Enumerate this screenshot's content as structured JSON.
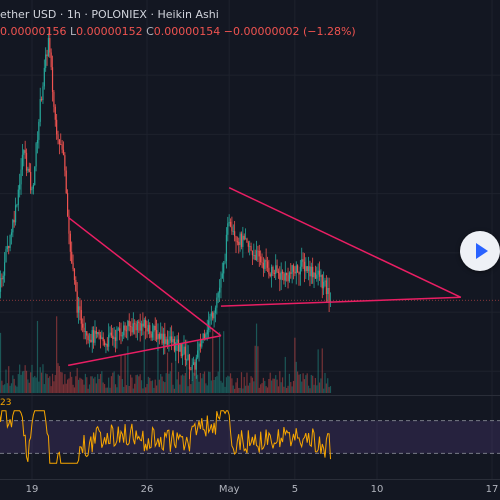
{
  "header": {
    "symbol": "ether USD",
    "interval": "1h",
    "exchange": "POLONIEX",
    "chart_style": "Heikin Ashi",
    "sep": "·",
    "open_value": "0.00000156",
    "low_label": "L",
    "low_value": "0.00000152",
    "close_label": "C",
    "close_value": "0.00000154",
    "change_value": "−0.00000002 (−1.28%)"
  },
  "rsi_value": "23",
  "icons": {
    "replay": "play-icon"
  },
  "colors": {
    "background": "#131722",
    "up_candle": "#26a69a",
    "down_candle": "#ef5350",
    "trendline": "#e91e63",
    "rsi_line": "#f7a600",
    "rsi_band": "#7e57c2"
  },
  "chart_data": [
    {
      "type": "candlestick",
      "style": "Heikin Ashi",
      "x_tick_labels": [
        "19",
        "26",
        "May",
        "5",
        "10",
        "17"
      ],
      "x_tick_days": [
        19,
        26,
        31,
        35,
        40,
        47
      ],
      "trendlines": [
        {
          "name": "triangle-1-upper",
          "from": {
            "day": 21.2,
            "price": 1.82
          },
          "to": {
            "day": 30.5,
            "price": 1.42
          }
        },
        {
          "name": "triangle-1-lower",
          "from": {
            "day": 21.2,
            "price": 1.32
          },
          "to": {
            "day": 30.5,
            "price": 1.42
          }
        },
        {
          "name": "triangle-2-upper",
          "from": {
            "day": 31.0,
            "price": 1.92
          },
          "to": {
            "day": 45.1,
            "price": 1.55
          }
        },
        {
          "name": "triangle-2-lower",
          "from": {
            "day": 30.5,
            "price": 1.52
          },
          "to": {
            "day": 45.1,
            "price": 1.55
          }
        }
      ],
      "current_price": 1.54,
      "price_range": [
        1.22,
        2.52
      ],
      "grid": true,
      "legend": "none"
    },
    {
      "type": "bar",
      "name": "Volume",
      "description": "hourly volume histogram below price pane"
    },
    {
      "type": "line",
      "name": "RSI",
      "y_range": [
        0,
        100
      ],
      "bands": [
        30,
        70
      ],
      "last_value": 23
    }
  ]
}
